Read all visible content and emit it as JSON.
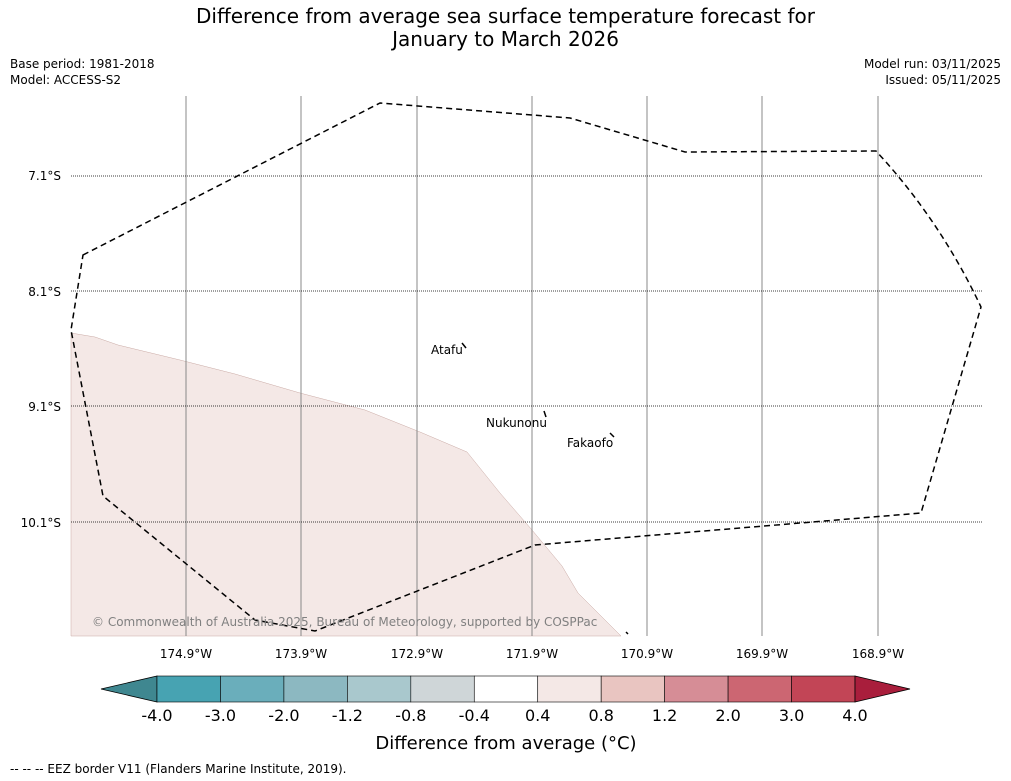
{
  "title_line1": "Difference from average sea surface temperature forecast for",
  "title_line2": "January to March 2026",
  "meta": {
    "base_period": "Base period: 1981-2018",
    "model": "Model: ACCESS-S2",
    "model_run": "Model run: 03/11/2025",
    "issued": "Issued: 05/11/2025"
  },
  "map": {
    "lat_labels": [
      "7.1°S",
      "8.1°S",
      "9.1°S",
      "10.1°S"
    ],
    "lon_labels": [
      "174.9°W",
      "173.9°W",
      "172.9°W",
      "171.9°W",
      "170.9°W",
      "169.9°W",
      "168.9°W"
    ],
    "places": [
      "Atafu",
      "Nukunonu",
      "Fakaofo"
    ],
    "copyright": "© Commonwealth of Australia 2025, Bureau of Meteorology, supported by COSPPac"
  },
  "colorbar": {
    "tick_labels": [
      "-4.0",
      "-3.0",
      "-2.0",
      "-1.2",
      "-0.8",
      "-0.4",
      "0.4",
      "0.8",
      "1.2",
      "2.0",
      "3.0",
      "4.0"
    ],
    "colors": [
      "#3f8790",
      "#47a3b2",
      "#6aaebb",
      "#8cb8c1",
      "#a9c8cd",
      "#cfd6d8",
      "#ffffff",
      "#f4e8e6",
      "#e9c5c1",
      "#d68d96",
      "#cc6672",
      "#c24556",
      "#a91e3c"
    ],
    "label": "Difference from average (°C)",
    "shaded_value_color": "#f4e8e6"
  },
  "footer": "-- -- -- EEZ border V11 (Flanders Marine Institute, 2019)."
}
